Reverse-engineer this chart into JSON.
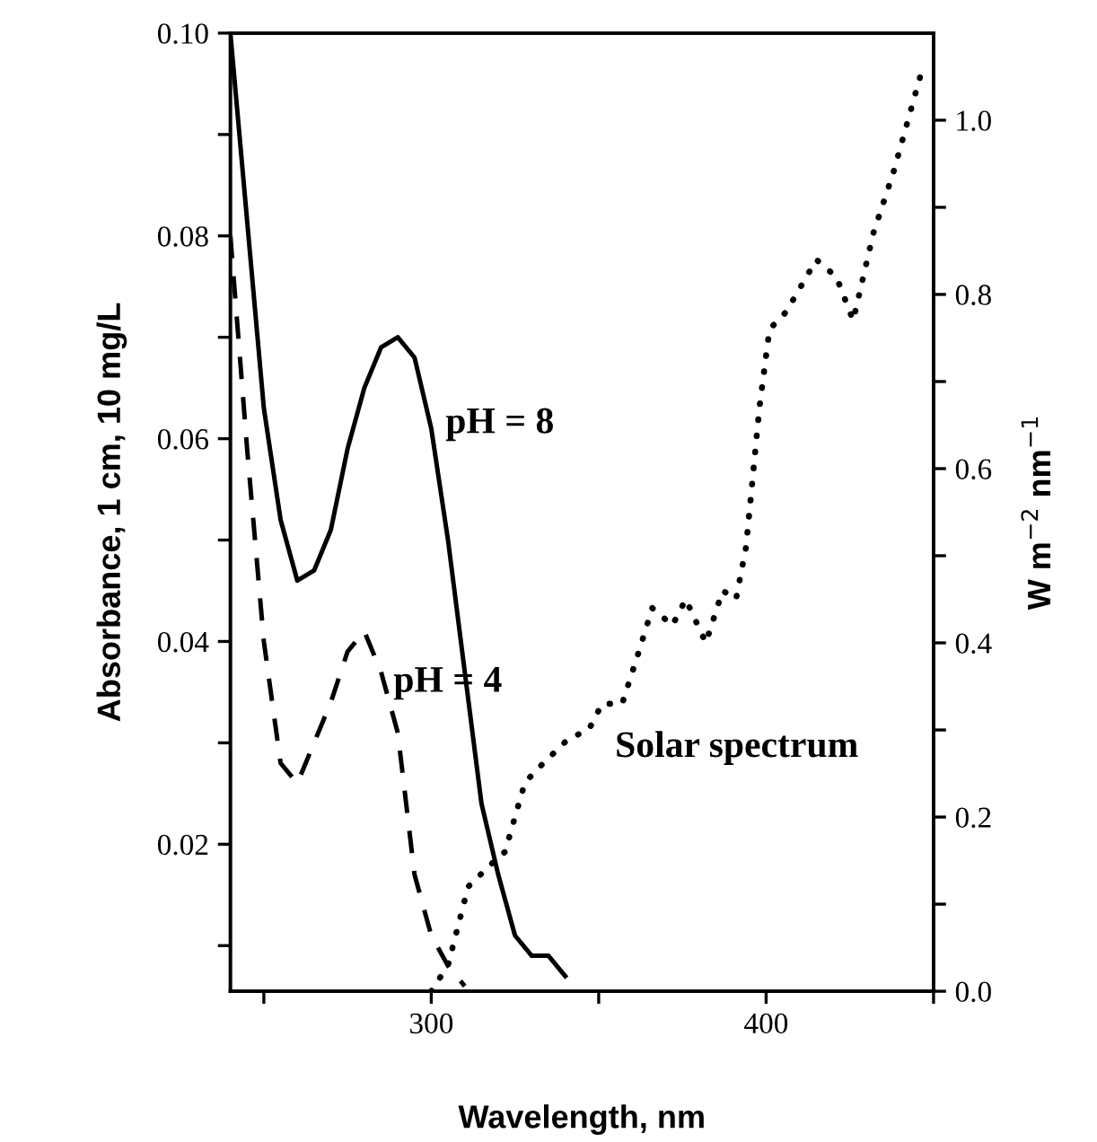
{
  "chart_data": {
    "type": "line",
    "xlabel": "Wavelength, nm",
    "ylabel": "Absorbance, 1 cm, 10 mg/L",
    "y2label": "W m$^{−2}$ nm$^{−1}$",
    "xlim": [
      240,
      450
    ],
    "xticks": [
      {
        "value": 250,
        "label": null
      },
      300,
      {
        "value": 350,
        "label": null
      },
      400,
      {
        "value": 450,
        "label": null
      }
    ],
    "ylim": [
      0.0055,
      0.1
    ],
    "yticks": [
      {
        "value": 0.01,
        "label": null
      },
      0.02,
      {
        "value": 0.03,
        "label": null
      },
      0.04,
      {
        "value": 0.05,
        "label": null
      },
      0.06,
      {
        "value": 0.07,
        "label": null
      },
      0.08,
      {
        "value": 0.09,
        "label": null
      },
      {
        "value": 0.1,
        "label": "0.10"
      }
    ],
    "y2lim": [
      0,
      1.1
    ],
    "y2ticks": [
      {
        "value": 0,
        "label": "0.0"
      },
      {
        "value": 0.1,
        "label": null
      },
      0.2,
      {
        "value": 0.3,
        "label": null
      },
      0.4,
      {
        "value": 0.5,
        "label": null
      },
      0.6,
      {
        "value": 0.7,
        "label": null
      },
      0.8,
      {
        "value": 0.9,
        "label": null
      },
      {
        "value": 1,
        "label": "1.0"
      }
    ],
    "grid": false,
    "legend": false,
    "marker": "none",
    "series": [
      {
        "name": "pH = 8",
        "color": "#000000",
        "line_style": "solid",
        "x": [
          240,
          250,
          255,
          260,
          265,
          270,
          275,
          280,
          285,
          290,
          295,
          300,
          305,
          310,
          315,
          320,
          325,
          330,
          335,
          340
        ],
        "values": [
          0.1,
          0.063,
          0.052,
          0.046,
          0.047,
          0.051,
          0.059,
          0.065,
          0.069,
          0.07,
          0.068,
          0.061,
          0.05,
          0.037,
          0.024,
          0.017,
          0.011,
          0.009,
          0.009,
          0.007
        ]
      },
      {
        "name": "pH = 4",
        "color": "#000000",
        "line_style": "dashed",
        "x": [
          240,
          245,
          250,
          255,
          260,
          265,
          270,
          275,
          280,
          285,
          290,
          295,
          300,
          305,
          310
        ],
        "values": [
          0.08,
          0.059,
          0.04,
          0.028,
          0.026,
          0.03,
          0.034,
          0.039,
          0.041,
          0.037,
          0.031,
          0.017,
          0.011,
          0.008,
          0.006
        ]
      },
      {
        "name": "Solar spectrum",
        "color": "#000000",
        "line_style": "dotted",
        "axis": "y2",
        "x": [
          300,
          305,
          311,
          319,
          322,
          328,
          333,
          341,
          347,
          351,
          357,
          362,
          366,
          372,
          376,
          382,
          387,
          391,
          394,
          398,
          401,
          406,
          415,
          421,
          426,
          432,
          438,
          446
        ],
        "values": [
          0.0,
          0.03,
          0.12,
          0.15,
          0.16,
          0.24,
          0.26,
          0.29,
          0.3,
          0.33,
          0.33,
          0.39,
          0.44,
          0.42,
          0.45,
          0.4,
          0.46,
          0.45,
          0.51,
          0.67,
          0.76,
          0.78,
          0.84,
          0.82,
          0.77,
          0.87,
          0.94,
          1.05
        ]
      }
    ]
  }
}
